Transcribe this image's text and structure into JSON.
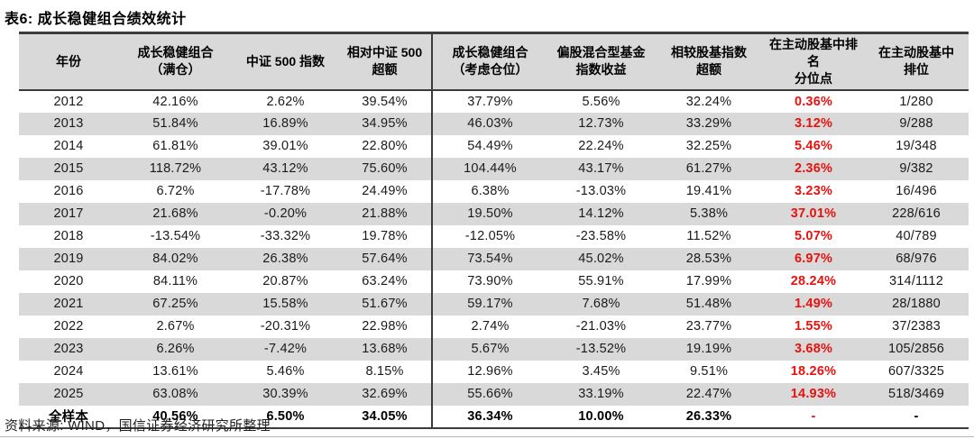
{
  "title": "表6: 成长稳健组合绩效统计",
  "source": "资料来源: WIND，国信证券经济研究所整理",
  "colors": {
    "header_bg": "#d9d9d9",
    "stripe_bg": "#d9d9d9",
    "highlight_red": "#e8120f",
    "border_dark": "#3c3c3c"
  },
  "table": {
    "columns": [
      {
        "key": "year",
        "lines": [
          "年份"
        ]
      },
      {
        "key": "portfolio-full-position",
        "lines": [
          "成长稳健组合",
          "（满仓）"
        ]
      },
      {
        "key": "csi500-index",
        "lines": [
          "中证 500 指数"
        ]
      },
      {
        "key": "excess-vs-csi500",
        "lines": [
          "相对中证 500",
          "超额"
        ]
      },
      {
        "key": "portfolio-considering-position",
        "lines": [
          "成长稳健组合",
          "（考虑仓位）"
        ]
      },
      {
        "key": "hybrid-fund-index-return",
        "lines": [
          "偏股混合型基金",
          "指数收益"
        ]
      },
      {
        "key": "excess-vs-fund-index",
        "lines": [
          "相较股基指数",
          "超额"
        ]
      },
      {
        "key": "active-fund-percentile",
        "lines": [
          "在主动股基中排名",
          "分位点"
        ]
      },
      {
        "key": "active-fund-rank",
        "lines": [
          "在主动股基中",
          "排位"
        ]
      }
    ],
    "red_column_index": 7,
    "rows": [
      [
        "2012",
        "42.16%",
        "2.62%",
        "39.54%",
        "37.79%",
        "5.56%",
        "32.24%",
        "0.36%",
        "1/280"
      ],
      [
        "2013",
        "51.84%",
        "16.89%",
        "34.95%",
        "46.03%",
        "12.73%",
        "33.29%",
        "3.12%",
        "9/288"
      ],
      [
        "2014",
        "61.81%",
        "39.01%",
        "22.80%",
        "54.49%",
        "22.24%",
        "32.25%",
        "5.46%",
        "19/348"
      ],
      [
        "2015",
        "118.72%",
        "43.12%",
        "75.60%",
        "104.44%",
        "43.17%",
        "61.27%",
        "2.36%",
        "9/382"
      ],
      [
        "2016",
        "6.72%",
        "-17.78%",
        "24.49%",
        "6.38%",
        "-13.03%",
        "19.41%",
        "3.23%",
        "16/496"
      ],
      [
        "2017",
        "21.68%",
        "-0.20%",
        "21.88%",
        "19.50%",
        "14.12%",
        "5.38%",
        "37.01%",
        "228/616"
      ],
      [
        "2018",
        "-13.54%",
        "-33.32%",
        "19.78%",
        "-12.05%",
        "-23.58%",
        "11.52%",
        "5.07%",
        "40/789"
      ],
      [
        "2019",
        "84.02%",
        "26.38%",
        "57.64%",
        "73.54%",
        "45.02%",
        "28.53%",
        "6.97%",
        "68/976"
      ],
      [
        "2020",
        "84.11%",
        "20.87%",
        "63.24%",
        "73.90%",
        "55.91%",
        "17.99%",
        "28.24%",
        "314/1112"
      ],
      [
        "2021",
        "67.25%",
        "15.58%",
        "51.67%",
        "59.17%",
        "7.68%",
        "51.48%",
        "1.49%",
        "28/1880"
      ],
      [
        "2022",
        "2.67%",
        "-20.31%",
        "22.98%",
        "2.74%",
        "-21.03%",
        "23.77%",
        "1.55%",
        "37/2383"
      ],
      [
        "2023",
        "6.26%",
        "-7.42%",
        "13.68%",
        "5.67%",
        "-13.52%",
        "19.19%",
        "3.68%",
        "105/2856"
      ],
      [
        "2024",
        "13.61%",
        "5.46%",
        "8.15%",
        "12.96%",
        "3.45%",
        "9.51%",
        "18.26%",
        "607/3325"
      ],
      [
        "2025",
        "63.08%",
        "30.39%",
        "32.69%",
        "55.66%",
        "33.19%",
        "22.47%",
        "14.93%",
        "518/3469"
      ],
      [
        "全样本",
        "40.56%",
        "6.50%",
        "34.05%",
        "36.34%",
        "10.00%",
        "26.33%",
        "-",
        "-"
      ]
    ],
    "total_row_label": "全样本"
  }
}
